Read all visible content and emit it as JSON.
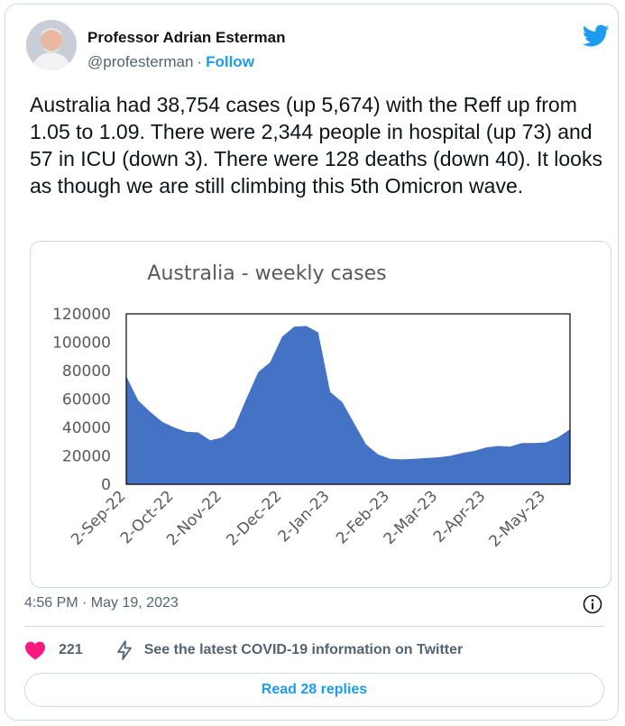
{
  "author": {
    "name": "Professor Adrian Esterman",
    "handle": "@profesterman",
    "separator": "·",
    "follow_label": "Follow"
  },
  "tweet": {
    "text": "Australia had 38,754 cases (up 5,674) with the Reff up from 1.05 to 1.09. There were 2,344 people in hospital (up 73) and 57 in ICU (down 3). There were 128 deaths (down 40). It looks as though we are still climbing this 5th Omicron wave."
  },
  "chart_data": {
    "type": "area",
    "title": "Australia - weekly cases",
    "xlabel": "",
    "ylabel": "",
    "ylim": [
      0,
      120000
    ],
    "yticks": [
      0,
      20000,
      40000,
      60000,
      80000,
      100000,
      120000
    ],
    "color": "#4472c4",
    "x_tick_labels": [
      "2-Sep-22",
      "2-Oct-22",
      "2-Nov-22",
      "2-Dec-22",
      "2-Jan-23",
      "2-Feb-23",
      "2-Mar-23",
      "2-Apr-23",
      "2-May-23"
    ],
    "x_tick_index": [
      0,
      4,
      8,
      13,
      17,
      22,
      26,
      30,
      35
    ],
    "series": [
      {
        "values": [
          76000,
          59000,
          51000,
          44000,
          40000,
          37000,
          36500,
          31000,
          33000,
          40000,
          60000,
          79000,
          86000,
          104000,
          111000,
          111500,
          107000,
          65000,
          58000,
          43000,
          28000,
          21000,
          18000,
          17500,
          18000,
          18500,
          19000,
          20000,
          22000,
          23500,
          26000,
          27000,
          26500,
          29000,
          29000,
          29500,
          33000,
          38754
        ]
      }
    ]
  },
  "footer": {
    "timestamp": "4:56 PM · May 19, 2023",
    "like_count": "221",
    "covid_link": "See the latest COVID-19 information on Twitter",
    "read_replies": "Read 28 replies"
  },
  "icons": {
    "twitter": "twitter-bird-icon",
    "info": "info-icon",
    "heart": "heart-icon",
    "bolt": "lightning-icon"
  },
  "colors": {
    "accent": "#1d9bf0",
    "like": "#f91880",
    "chart_fill": "#4472c4"
  }
}
